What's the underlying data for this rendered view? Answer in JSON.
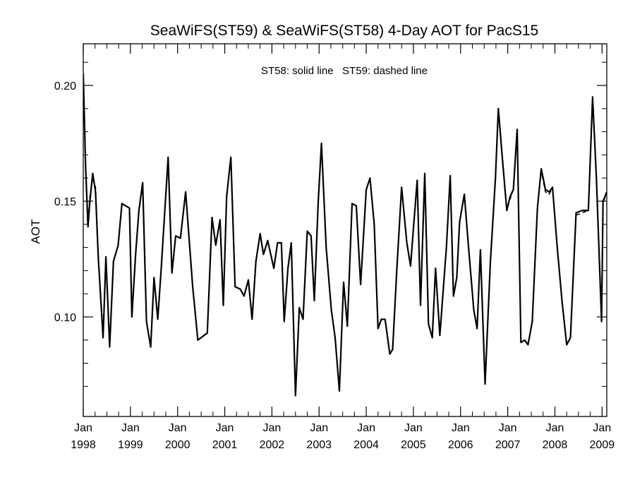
{
  "chart_data": {
    "type": "line",
    "title": "SeaWiFS(ST59) & SeaWiFS(ST58) 4-Day AOT for PacS15",
    "annotation": "ST58: solid line   ST59: dashed line",
    "xlabel": "",
    "ylabel": "AOT",
    "xlim": [
      1998.0,
      2009.1
    ],
    "ylim": [
      0.057,
      0.218
    ],
    "grid": false,
    "y_ticks": [
      {
        "value": 0.1,
        "label": "0.10"
      },
      {
        "value": 0.15,
        "label": "0.15"
      },
      {
        "value": 0.2,
        "label": "0.20"
      }
    ],
    "y_minor_ticks": [
      0.07,
      0.08,
      0.09,
      0.11,
      0.12,
      0.13,
      0.14,
      0.16,
      0.17,
      0.18,
      0.19,
      0.21
    ],
    "x_ticks": [
      {
        "value": 1998,
        "month": "Jan",
        "year": "1998"
      },
      {
        "value": 1999,
        "month": "Jan",
        "year": "1999"
      },
      {
        "value": 2000,
        "month": "Jan",
        "year": "2000"
      },
      {
        "value": 2001,
        "month": "Jan",
        "year": "2001"
      },
      {
        "value": 2002,
        "month": "Jan",
        "year": "2002"
      },
      {
        "value": 2003,
        "month": "Jan",
        "year": "2003"
      },
      {
        "value": 2004,
        "month": "Jan",
        "year": "2004"
      },
      {
        "value": 2005,
        "month": "Jan",
        "year": "2005"
      },
      {
        "value": 2006,
        "month": "Jan",
        "year": "2006"
      },
      {
        "value": 2007,
        "month": "Jan",
        "year": "2007"
      },
      {
        "value": 2008,
        "month": "Jan",
        "year": "2008"
      },
      {
        "value": 2009,
        "month": "Jan",
        "year": "2009"
      }
    ],
    "series": [
      {
        "name": "ST58",
        "style": "solid",
        "color": "#000000",
        "points": [
          [
            1998.0,
            0.205
          ],
          [
            1998.05,
            0.165
          ],
          [
            1998.1,
            0.139
          ],
          [
            1998.14,
            0.15
          ],
          [
            1998.2,
            0.162
          ],
          [
            1998.26,
            0.154
          ],
          [
            1998.32,
            0.125
          ],
          [
            1998.42,
            0.091
          ],
          [
            1998.48,
            0.126
          ],
          [
            1998.56,
            0.087
          ],
          [
            1998.64,
            0.124
          ],
          [
            1998.74,
            0.131
          ],
          [
            1998.82,
            0.149
          ],
          [
            1998.98,
            0.147
          ],
          [
            1999.03,
            0.1
          ],
          [
            1999.11,
            0.127
          ],
          [
            1999.18,
            0.146
          ],
          [
            1999.26,
            0.158
          ],
          [
            1999.34,
            0.098
          ],
          [
            1999.43,
            0.087
          ],
          [
            1999.5,
            0.117
          ],
          [
            1999.58,
            0.099
          ],
          [
            1999.65,
            0.12
          ],
          [
            1999.8,
            0.169
          ],
          [
            1999.88,
            0.119
          ],
          [
            1999.96,
            0.135
          ],
          [
            2000.06,
            0.134
          ],
          [
            2000.17,
            0.154
          ],
          [
            2000.32,
            0.113
          ],
          [
            2000.43,
            0.09
          ],
          [
            2000.56,
            0.092
          ],
          [
            2000.63,
            0.093
          ],
          [
            2000.73,
            0.143
          ],
          [
            2000.81,
            0.131
          ],
          [
            2000.9,
            0.142
          ],
          [
            2000.97,
            0.105
          ],
          [
            2001.04,
            0.152
          ],
          [
            2001.13,
            0.169
          ],
          [
            2001.22,
            0.113
          ],
          [
            2001.33,
            0.112
          ],
          [
            2001.41,
            0.109
          ],
          [
            2001.5,
            0.116
          ],
          [
            2001.58,
            0.099
          ],
          [
            2001.66,
            0.124
          ],
          [
            2001.75,
            0.136
          ],
          [
            2001.82,
            0.127
          ],
          [
            2001.91,
            0.133
          ],
          [
            2002.04,
            0.121
          ],
          [
            2002.12,
            0.132
          ],
          [
            2002.2,
            0.132
          ],
          [
            2002.26,
            0.098
          ],
          [
            2002.34,
            0.121
          ],
          [
            2002.41,
            0.132
          ],
          [
            2002.5,
            0.066
          ],
          [
            2002.58,
            0.104
          ],
          [
            2002.66,
            0.099
          ],
          [
            2002.75,
            0.137
          ],
          [
            2002.83,
            0.135
          ],
          [
            2002.9,
            0.107
          ],
          [
            2002.98,
            0.149
          ],
          [
            2003.05,
            0.175
          ],
          [
            2003.15,
            0.13
          ],
          [
            2003.26,
            0.103
          ],
          [
            2003.34,
            0.091
          ],
          [
            2003.43,
            0.068
          ],
          [
            2003.52,
            0.115
          ],
          [
            2003.6,
            0.096
          ],
          [
            2003.7,
            0.149
          ],
          [
            2003.79,
            0.148
          ],
          [
            2003.88,
            0.114
          ],
          [
            2004.0,
            0.155
          ],
          [
            2004.08,
            0.16
          ],
          [
            2004.17,
            0.14
          ],
          [
            2004.25,
            0.095
          ],
          [
            2004.32,
            0.099
          ],
          [
            2004.4,
            0.099
          ],
          [
            2004.5,
            0.084
          ],
          [
            2004.56,
            0.086
          ],
          [
            2004.65,
            0.121
          ],
          [
            2004.75,
            0.156
          ],
          [
            2004.86,
            0.132
          ],
          [
            2004.94,
            0.122
          ],
          [
            2005.0,
            0.138
          ],
          [
            2005.08,
            0.159
          ],
          [
            2005.15,
            0.105
          ],
          [
            2005.24,
            0.162
          ],
          [
            2005.32,
            0.097
          ],
          [
            2005.4,
            0.091
          ],
          [
            2005.47,
            0.121
          ],
          [
            2005.56,
            0.092
          ],
          [
            2005.7,
            0.13
          ],
          [
            2005.78,
            0.161
          ],
          [
            2005.85,
            0.109
          ],
          [
            2005.92,
            0.117
          ],
          [
            2005.98,
            0.141
          ],
          [
            2006.08,
            0.153
          ],
          [
            2006.17,
            0.13
          ],
          [
            2006.28,
            0.103
          ],
          [
            2006.35,
            0.095
          ],
          [
            2006.42,
            0.129
          ],
          [
            2006.52,
            0.071
          ],
          [
            2006.63,
            0.123
          ],
          [
            2006.74,
            0.16
          ],
          [
            2006.8,
            0.19
          ],
          [
            2006.88,
            0.17
          ],
          [
            2006.98,
            0.146
          ],
          [
            2007.05,
            0.152
          ],
          [
            2007.12,
            0.155
          ],
          [
            2007.2,
            0.181
          ],
          [
            2007.28,
            0.089
          ],
          [
            2007.36,
            0.09
          ],
          [
            2007.43,
            0.088
          ],
          [
            2007.52,
            0.098
          ],
          [
            2007.63,
            0.147
          ],
          [
            2007.71,
            0.164
          ],
          [
            2007.8,
            0.155
          ],
          [
            2007.88,
            0.154
          ],
          [
            2007.95,
            0.156
          ],
          [
            2008.05,
            0.13
          ],
          [
            2008.15,
            0.107
          ],
          [
            2008.25,
            0.088
          ],
          [
            2008.33,
            0.091
          ],
          [
            2008.45,
            0.145
          ],
          [
            2008.58,
            0.146
          ],
          [
            2008.71,
            0.146
          ],
          [
            2008.8,
            0.195
          ],
          [
            2008.88,
            0.16
          ],
          [
            2008.99,
            0.098
          ],
          [
            2009.02,
            0.15
          ],
          [
            2009.1,
            0.154
          ]
        ]
      },
      {
        "name": "ST59",
        "style": "dashed",
        "color": "#000000",
        "points": [
          [
            1998.0,
            0.204
          ],
          [
            1998.05,
            0.166
          ],
          [
            1998.1,
            0.141
          ],
          [
            1998.14,
            0.152
          ],
          [
            1998.2,
            0.16
          ],
          [
            1998.26,
            0.156
          ],
          [
            1998.32,
            0.126
          ],
          [
            1998.42,
            0.092
          ],
          [
            1998.48,
            0.126
          ],
          [
            1998.56,
            0.087
          ],
          [
            1998.64,
            0.124
          ],
          [
            1998.74,
            0.131
          ],
          [
            1998.82,
            0.149
          ],
          [
            1998.98,
            0.147
          ],
          [
            1999.03,
            0.1
          ],
          [
            1999.11,
            0.127
          ],
          [
            1999.18,
            0.146
          ],
          [
            1999.26,
            0.158
          ],
          [
            1999.34,
            0.098
          ],
          [
            1999.43,
            0.087
          ],
          [
            1999.5,
            0.117
          ],
          [
            1999.58,
            0.099
          ],
          [
            1999.65,
            0.12
          ],
          [
            1999.8,
            0.169
          ],
          [
            1999.88,
            0.119
          ],
          [
            1999.96,
            0.135
          ],
          [
            2000.06,
            0.134
          ],
          [
            2000.17,
            0.154
          ],
          [
            2000.32,
            0.113
          ],
          [
            2000.43,
            0.09
          ],
          [
            2000.56,
            0.092
          ],
          [
            2000.63,
            0.093
          ],
          [
            2000.73,
            0.143
          ],
          [
            2000.81,
            0.131
          ],
          [
            2000.9,
            0.142
          ],
          [
            2000.97,
            0.105
          ],
          [
            2001.04,
            0.152
          ],
          [
            2001.13,
            0.169
          ],
          [
            2001.22,
            0.113
          ],
          [
            2001.33,
            0.112
          ],
          [
            2001.41,
            0.109
          ],
          [
            2001.5,
            0.116
          ],
          [
            2001.58,
            0.099
          ],
          [
            2001.66,
            0.124
          ],
          [
            2001.75,
            0.136
          ],
          [
            2001.82,
            0.127
          ],
          [
            2001.91,
            0.133
          ],
          [
            2002.04,
            0.121
          ],
          [
            2002.12,
            0.132
          ],
          [
            2002.2,
            0.132
          ],
          [
            2002.26,
            0.098
          ],
          [
            2002.34,
            0.121
          ],
          [
            2002.41,
            0.132
          ],
          [
            2002.5,
            0.066
          ],
          [
            2002.58,
            0.104
          ],
          [
            2002.66,
            0.099
          ],
          [
            2002.75,
            0.137
          ],
          [
            2002.83,
            0.135
          ],
          [
            2002.9,
            0.107
          ],
          [
            2002.98,
            0.149
          ],
          [
            2003.05,
            0.175
          ],
          [
            2003.15,
            0.13
          ],
          [
            2003.26,
            0.103
          ],
          [
            2003.34,
            0.091
          ],
          [
            2003.43,
            0.068
          ],
          [
            2003.52,
            0.115
          ],
          [
            2003.6,
            0.096
          ],
          [
            2003.7,
            0.149
          ],
          [
            2003.79,
            0.148
          ],
          [
            2003.88,
            0.114
          ],
          [
            2004.0,
            0.155
          ],
          [
            2004.08,
            0.16
          ],
          [
            2004.17,
            0.14
          ],
          [
            2004.25,
            0.095
          ],
          [
            2004.32,
            0.099
          ],
          [
            2004.4,
            0.099
          ],
          [
            2004.5,
            0.084
          ],
          [
            2004.56,
            0.086
          ],
          [
            2004.65,
            0.121
          ],
          [
            2004.75,
            0.156
          ],
          [
            2004.86,
            0.132
          ],
          [
            2004.94,
            0.122
          ],
          [
            2005.0,
            0.138
          ],
          [
            2005.08,
            0.159
          ],
          [
            2005.15,
            0.105
          ],
          [
            2005.24,
            0.162
          ],
          [
            2005.32,
            0.097
          ],
          [
            2005.4,
            0.091
          ],
          [
            2005.47,
            0.121
          ],
          [
            2005.56,
            0.092
          ],
          [
            2005.7,
            0.13
          ],
          [
            2005.78,
            0.161
          ],
          [
            2005.85,
            0.109
          ],
          [
            2005.92,
            0.117
          ],
          [
            2005.98,
            0.141
          ],
          [
            2006.08,
            0.153
          ],
          [
            2006.17,
            0.13
          ],
          [
            2006.28,
            0.103
          ],
          [
            2006.35,
            0.095
          ],
          [
            2006.42,
            0.129
          ],
          [
            2006.52,
            0.071
          ],
          [
            2006.63,
            0.123
          ],
          [
            2006.74,
            0.16
          ],
          [
            2006.8,
            0.19
          ],
          [
            2006.88,
            0.17
          ],
          [
            2006.98,
            0.146
          ],
          [
            2007.05,
            0.151
          ],
          [
            2007.12,
            0.155
          ],
          [
            2007.2,
            0.181
          ],
          [
            2007.28,
            0.089
          ],
          [
            2007.36,
            0.09
          ],
          [
            2007.43,
            0.088
          ],
          [
            2007.52,
            0.098
          ],
          [
            2007.63,
            0.147
          ],
          [
            2007.71,
            0.163
          ],
          [
            2007.8,
            0.154
          ],
          [
            2007.88,
            0.153
          ],
          [
            2007.95,
            0.156
          ],
          [
            2008.05,
            0.13
          ],
          [
            2008.15,
            0.107
          ],
          [
            2008.25,
            0.088
          ],
          [
            2008.33,
            0.091
          ],
          [
            2008.45,
            0.144
          ],
          [
            2008.58,
            0.145
          ],
          [
            2008.71,
            0.146
          ],
          [
            2008.8,
            0.195
          ],
          [
            2008.88,
            0.16
          ],
          [
            2008.99,
            0.098
          ],
          [
            2009.02,
            0.149
          ],
          [
            2009.1,
            0.154
          ]
        ]
      }
    ]
  }
}
